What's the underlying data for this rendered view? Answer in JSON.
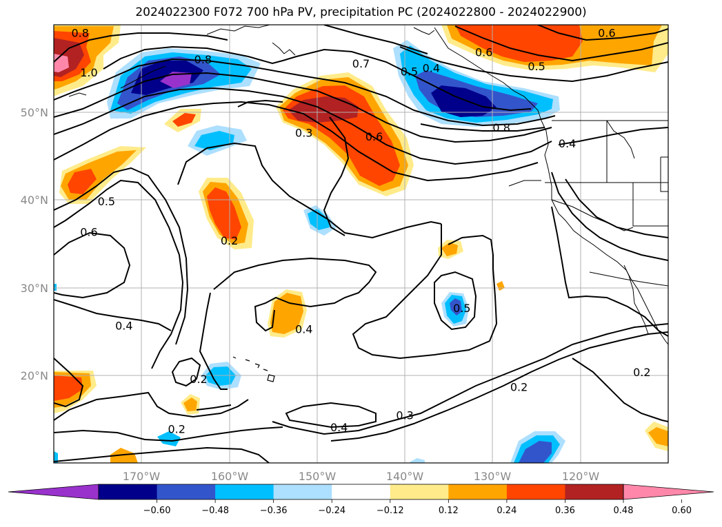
{
  "title": "2024022300 F072 700 hPa PV, precipitation PC (2024022800 - 2024022900)",
  "map": {
    "lon_range": [
      -180,
      -110
    ],
    "lat_range": [
      10,
      60
    ],
    "lat_labels": [
      "50°N",
      "40°N",
      "30°N",
      "20°N"
    ],
    "lon_labels": [
      "170°W",
      "160°W",
      "150°W",
      "140°W",
      "130°W",
      "120°W"
    ],
    "gridlines": true
  },
  "contour_labels": [
    {
      "text": "0.8",
      "lon": -177,
      "lat": 59
    },
    {
      "text": "1.0",
      "lon": -176,
      "lat": 54.5
    },
    {
      "text": "0.8",
      "lon": -163,
      "lat": 56
    },
    {
      "text": "0.7",
      "lon": -145,
      "lat": 55.5
    },
    {
      "text": "0.5",
      "lon": -139.5,
      "lat": 54.6
    },
    {
      "text": "0.4",
      "lon": -137,
      "lat": 55
    },
    {
      "text": "0.6",
      "lon": -131,
      "lat": 56.8
    },
    {
      "text": "0.6",
      "lon": -117,
      "lat": 59
    },
    {
      "text": "0.5",
      "lon": -125,
      "lat": 55.2
    },
    {
      "text": "0.3",
      "lon": -151.5,
      "lat": 47.6
    },
    {
      "text": "0.6",
      "lon": -143.5,
      "lat": 47.2
    },
    {
      "text": "0.8",
      "lon": -129,
      "lat": 48.2
    },
    {
      "text": "0.4",
      "lon": -121.5,
      "lat": 46.4
    },
    {
      "text": "0.5",
      "lon": -174,
      "lat": 39.8
    },
    {
      "text": "0.6",
      "lon": -176,
      "lat": 36.3
    },
    {
      "text": "0.2",
      "lon": -160,
      "lat": 35.3
    },
    {
      "text": "0.4",
      "lon": -172,
      "lat": 25.6
    },
    {
      "text": "0.4",
      "lon": -151.5,
      "lat": 25.2
    },
    {
      "text": "0.5",
      "lon": -133.5,
      "lat": 27.6
    },
    {
      "text": "0.2",
      "lon": -163.5,
      "lat": 19.5
    },
    {
      "text": "0.2",
      "lon": -127,
      "lat": 18.6
    },
    {
      "text": "0.2",
      "lon": -113,
      "lat": 20.3
    },
    {
      "text": "0.3",
      "lon": -140,
      "lat": 15.4
    },
    {
      "text": "0.4",
      "lon": -147.5,
      "lat": 14
    },
    {
      "text": "0.2",
      "lon": -166,
      "lat": 13.8
    }
  ],
  "colorbar": {
    "levels": [
      "-0.60",
      "-0.48",
      "-0.36",
      "-0.24",
      "-0.12",
      "0.12",
      "0.24",
      "0.36",
      "0.48",
      "0.60"
    ],
    "colors": [
      "#9932CC",
      "#00008B",
      "#3355CC",
      "#00BFFF",
      "#ADDFFF",
      "#FFFFFF",
      "#FFEB8A",
      "#FFA500",
      "#FF4500",
      "#B22222",
      "#FF88AA"
    ]
  }
}
